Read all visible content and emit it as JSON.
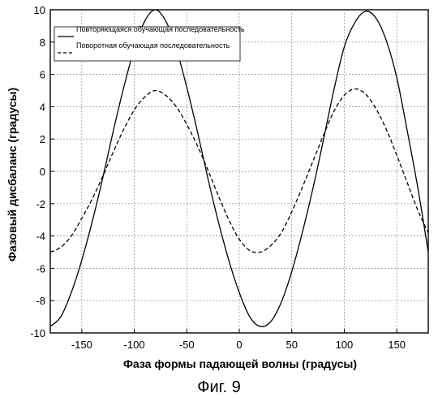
{
  "caption": "Фиг. 9",
  "chart_data": {
    "type": "line",
    "title": "",
    "xlabel": "Фаза формы падающей волны (градусы)",
    "ylabel": "Фазовый дисбаланс (градусы)",
    "xlim": [
      -180,
      180
    ],
    "ylim": [
      -10,
      10
    ],
    "x_ticks": [
      -150,
      -100,
      -50,
      0,
      50,
      100,
      150
    ],
    "y_ticks": [
      -10,
      -8,
      -6,
      -4,
      -2,
      0,
      2,
      4,
      6,
      8,
      10
    ],
    "grid": true,
    "legend_position": "top-left",
    "x": [
      -180,
      -170,
      -160,
      -150,
      -140,
      -130,
      -120,
      -110,
      -100,
      -90,
      -80,
      -70,
      -60,
      -50,
      -40,
      -30,
      -20,
      -10,
      0,
      10,
      20,
      30,
      40,
      50,
      60,
      70,
      80,
      90,
      100,
      110,
      120,
      130,
      140,
      150,
      160,
      170,
      180
    ],
    "series": [
      {
        "name": "Повторяющаяся обучающая последовательность",
        "style": "solid",
        "color": "#000000",
        "values": [
          -9.6,
          -9.0,
          -7.5,
          -5.5,
          -3.1,
          -0.4,
          2.5,
          5.2,
          7.6,
          9.3,
          10.0,
          9.3,
          7.6,
          5.2,
          2.5,
          -0.4,
          -3.1,
          -5.5,
          -7.5,
          -9.0,
          -9.6,
          -9.3,
          -8.1,
          -6.2,
          -3.8,
          -1.1,
          1.9,
          5.0,
          7.7,
          9.2,
          9.9,
          9.5,
          8.1,
          5.8,
          2.5,
          -1.0,
          -5.0
        ]
      },
      {
        "name": "Поворотная обучающая последовательность",
        "style": "dashed",
        "color": "#000000",
        "values": [
          -5.0,
          -4.7,
          -4.0,
          -2.9,
          -1.7,
          -0.3,
          1.2,
          2.6,
          3.8,
          4.6,
          5.0,
          4.7,
          4.0,
          2.9,
          1.6,
          0.1,
          -1.5,
          -3.0,
          -4.2,
          -4.9,
          -5.0,
          -4.6,
          -3.8,
          -2.5,
          -1.0,
          0.6,
          2.2,
          3.7,
          4.7,
          5.1,
          4.8,
          3.9,
          2.6,
          1.0,
          -0.7,
          -2.4,
          -3.8
        ]
      }
    ]
  }
}
